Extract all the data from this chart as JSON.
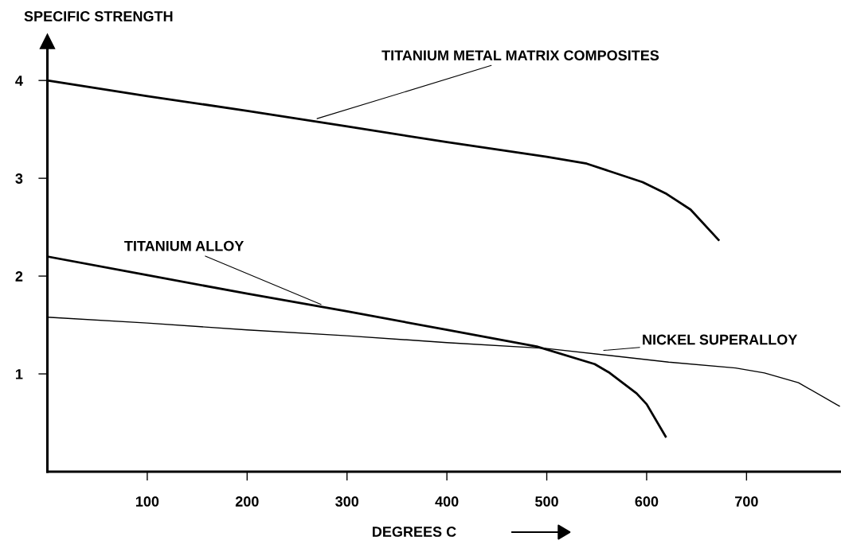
{
  "chart_data": {
    "type": "line",
    "ylabel": "SPECIFIC STRENGTH",
    "xlabel": "DEGREES C",
    "xlim": [
      0,
      795
    ],
    "ylim": [
      0,
      4.4
    ],
    "xticks": [
      100,
      200,
      300,
      400,
      500,
      600,
      700
    ],
    "yticks": [
      1,
      2,
      3,
      4
    ],
    "grid": false,
    "legend": false,
    "marker": "none",
    "line_style": "solid",
    "series": [
      {
        "color": "#000000",
        "x": [
          0,
          100,
          200,
          300,
          400,
          500,
          540,
          596,
          620,
          644,
          672
        ],
        "values": [
          4.0,
          3.84,
          3.69,
          3.53,
          3.37,
          3.22,
          3.15,
          2.96,
          2.84,
          2.68,
          2.37
        ]
      },
      {
        "color": "#000000",
        "x": [
          0,
          100,
          200,
          300,
          400,
          490,
          548,
          563,
          590,
          600,
          619
        ],
        "values": [
          2.2,
          2.01,
          1.82,
          1.64,
          1.45,
          1.28,
          1.1,
          1.01,
          0.8,
          0.69,
          0.36
        ]
      },
      {
        "color": "#000000",
        "x": [
          0,
          100,
          200,
          300,
          400,
          500,
          622,
          689,
          718,
          752,
          793
        ],
        "values": [
          1.58,
          1.52,
          1.45,
          1.39,
          1.32,
          1.26,
          1.12,
          1.06,
          1.01,
          0.91,
          0.67
        ]
      }
    ],
    "annotations": [
      {
        "text": "TITANIUM METAL MATRIX COMPOSITES",
        "x": 270,
        "y": 3.61
      },
      {
        "text": "TITANIUM ALLOY",
        "x": 274,
        "y": 1.71
      },
      {
        "text": "NICKEL SUPERALLOY",
        "x": 557,
        "y": 1.24
      }
    ]
  }
}
